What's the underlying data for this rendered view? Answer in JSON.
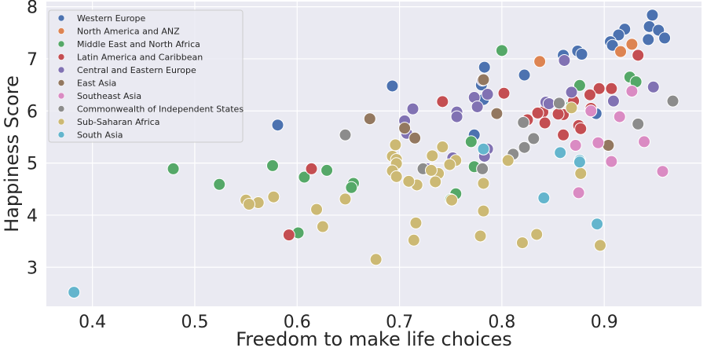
{
  "chart_data": {
    "type": "scatter",
    "xlabel": "Freedom to make life choices",
    "ylabel": "Happiness Score",
    "xlim": [
      0.355,
      0.995
    ],
    "ylim": [
      2.25,
      8.1
    ],
    "xticks": [
      0.4,
      0.5,
      0.6,
      0.7,
      0.8,
      0.9
    ],
    "yticks": [
      3,
      4,
      5,
      6,
      7,
      8
    ],
    "grid": true,
    "legend_position": "top-left",
    "background": "#eaeaf2",
    "series": [
      {
        "name": "Western Europe",
        "color": "#4c72b0",
        "points": [
          [
            0.947,
            7.84
          ],
          [
            0.944,
            7.62
          ],
          [
            0.953,
            7.55
          ],
          [
            0.959,
            7.4
          ],
          [
            0.943,
            7.37
          ],
          [
            0.92,
            7.57
          ],
          [
            0.914,
            7.46
          ],
          [
            0.906,
            7.33
          ],
          [
            0.908,
            7.26
          ],
          [
            0.874,
            7.15
          ],
          [
            0.878,
            7.09
          ],
          [
            0.86,
            7.07
          ],
          [
            0.822,
            6.69
          ],
          [
            0.783,
            6.84
          ],
          [
            0.78,
            6.5
          ],
          [
            0.782,
            6.22
          ],
          [
            0.693,
            6.48
          ],
          [
            0.892,
            5.95
          ],
          [
            0.773,
            5.54
          ],
          [
            0.581,
            5.73
          ]
        ]
      },
      {
        "name": "North America and ANZ",
        "color": "#dd8452",
        "points": [
          [
            0.927,
            7.28
          ],
          [
            0.916,
            7.14
          ],
          [
            0.837,
            6.95
          ]
        ]
      },
      {
        "name": "Middle East and North Africa",
        "color": "#55a868",
        "points": [
          [
            0.8,
            7.16
          ],
          [
            0.876,
            6.49
          ],
          [
            0.925,
            6.65
          ],
          [
            0.931,
            6.56
          ],
          [
            0.868,
            6.11
          ],
          [
            0.77,
            5.41
          ],
          [
            0.773,
            4.93
          ],
          [
            0.755,
            4.41
          ],
          [
            0.75,
            4.3
          ],
          [
            0.655,
            4.61
          ],
          [
            0.653,
            4.53
          ],
          [
            0.629,
            4.86
          ],
          [
            0.607,
            4.73
          ],
          [
            0.576,
            4.95
          ],
          [
            0.601,
            3.66
          ],
          [
            0.524,
            4.59
          ],
          [
            0.479,
            4.89
          ]
        ]
      },
      {
        "name": "Latin America and Caribbean",
        "color": "#c44e52",
        "points": [
          [
            0.933,
            7.07
          ],
          [
            0.907,
            6.43
          ],
          [
            0.895,
            6.43
          ],
          [
            0.886,
            6.31
          ],
          [
            0.887,
            6.05
          ],
          [
            0.87,
            6.19
          ],
          [
            0.875,
            5.72
          ],
          [
            0.877,
            5.66
          ],
          [
            0.86,
            5.93
          ],
          [
            0.86,
            5.54
          ],
          [
            0.855,
            5.94
          ],
          [
            0.802,
            6.34
          ],
          [
            0.742,
            6.18
          ],
          [
            0.84,
            5.98
          ],
          [
            0.835,
            5.96
          ],
          [
            0.825,
            5.83
          ],
          [
            0.842,
            5.77
          ],
          [
            0.614,
            4.89
          ],
          [
            0.592,
            3.62
          ]
        ]
      },
      {
        "name": "Central and Eastern Europe",
        "color": "#8172b3",
        "points": [
          [
            0.948,
            6.46
          ],
          [
            0.909,
            6.19
          ],
          [
            0.868,
            6.36
          ],
          [
            0.861,
            6.97
          ],
          [
            0.843,
            6.17
          ],
          [
            0.846,
            6.14
          ],
          [
            0.781,
            6.59
          ],
          [
            0.786,
            6.32
          ],
          [
            0.773,
            6.26
          ],
          [
            0.776,
            6.08
          ],
          [
            0.756,
            5.98
          ],
          [
            0.756,
            5.89
          ],
          [
            0.713,
            6.04
          ],
          [
            0.705,
            5.81
          ],
          [
            0.707,
            5.57
          ],
          [
            0.786,
            5.27
          ],
          [
            0.783,
            5.13
          ],
          [
            0.752,
            5.1
          ],
          [
            0.727,
            4.89
          ]
        ]
      },
      {
        "name": "East Asia",
        "color": "#937860",
        "points": [
          [
            0.782,
            6.6
          ],
          [
            0.795,
            5.95
          ],
          [
            0.705,
            5.67
          ],
          [
            0.715,
            5.48
          ],
          [
            0.671,
            5.85
          ],
          [
            0.904,
            5.34
          ]
        ]
      },
      {
        "name": "Southeast Asia",
        "color": "#da8bc3",
        "points": [
          [
            0.927,
            6.38
          ],
          [
            0.915,
            5.89
          ],
          [
            0.887,
            6.0
          ],
          [
            0.939,
            5.41
          ],
          [
            0.957,
            4.84
          ],
          [
            0.907,
            5.03
          ],
          [
            0.894,
            5.39
          ],
          [
            0.872,
            5.34
          ],
          [
            0.875,
            4.43
          ]
        ]
      },
      {
        "name": "Commonwealth of Independent States",
        "color": "#8c8c8c",
        "points": [
          [
            0.967,
            6.19
          ],
          [
            0.933,
            5.75
          ],
          [
            0.856,
            6.15
          ],
          [
            0.821,
            5.78
          ],
          [
            0.831,
            5.47
          ],
          [
            0.822,
            5.3
          ],
          [
            0.811,
            5.17
          ],
          [
            0.781,
            4.89
          ],
          [
            0.723,
            4.89
          ],
          [
            0.647,
            5.54
          ]
        ]
      },
      {
        "name": "Sub-Saharan Africa",
        "color": "#ccb974",
        "points": [
          [
            0.868,
            6.06
          ],
          [
            0.877,
            4.8
          ],
          [
            0.896,
            3.42
          ],
          [
            0.834,
            3.63
          ],
          [
            0.82,
            3.47
          ],
          [
            0.806,
            5.05
          ],
          [
            0.782,
            4.61
          ],
          [
            0.782,
            4.08
          ],
          [
            0.779,
            3.6
          ],
          [
            0.755,
            5.05
          ],
          [
            0.742,
            5.31
          ],
          [
            0.749,
            4.97
          ],
          [
            0.738,
            4.8
          ],
          [
            0.735,
            4.64
          ],
          [
            0.732,
            5.14
          ],
          [
            0.731,
            4.86
          ],
          [
            0.717,
            4.58
          ],
          [
            0.709,
            4.65
          ],
          [
            0.716,
            3.85
          ],
          [
            0.714,
            3.52
          ],
          [
            0.696,
            5.35
          ],
          [
            0.693,
            5.13
          ],
          [
            0.697,
            5.07
          ],
          [
            0.697,
            4.99
          ],
          [
            0.693,
            4.85
          ],
          [
            0.697,
            4.74
          ],
          [
            0.677,
            3.15
          ],
          [
            0.647,
            4.31
          ],
          [
            0.625,
            3.78
          ],
          [
            0.619,
            4.11
          ],
          [
            0.577,
            4.35
          ],
          [
            0.562,
            4.24
          ],
          [
            0.55,
            4.29
          ],
          [
            0.553,
            4.21
          ],
          [
            0.751,
            4.29
          ]
        ]
      },
      {
        "name": "South Asia",
        "color": "#64b5cd",
        "points": [
          [
            0.782,
            5.27
          ],
          [
            0.857,
            5.2
          ],
          [
            0.876,
            5.05
          ],
          [
            0.876,
            5.02
          ],
          [
            0.841,
            4.33
          ],
          [
            0.893,
            3.83
          ],
          [
            0.382,
            2.52
          ]
        ]
      }
    ]
  }
}
